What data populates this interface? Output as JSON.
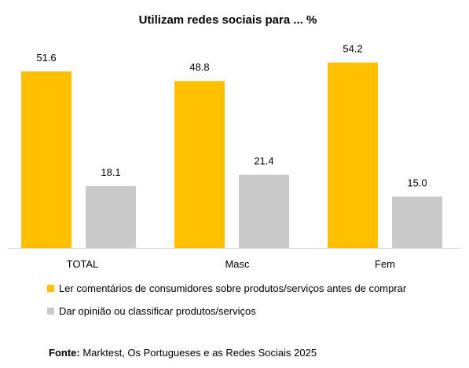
{
  "chart_data": {
    "type": "bar",
    "title": "Utilizam redes sociais para ... %",
    "categories": [
      "TOTAL",
      "Masc",
      "Fem"
    ],
    "series": [
      {
        "name": "Ler comentários de consumidores sobre produtos/serviços antes de comprar",
        "color": "#FFC000",
        "values": [
          51.6,
          48.8,
          54.2
        ]
      },
      {
        "name": "Dar opinião ou classificar produtos/serviços",
        "color": "#C9C9C9",
        "values": [
          18.1,
          21.4,
          15.0
        ]
      }
    ],
    "ylim": [
      0,
      60
    ],
    "grid": false,
    "legend": "bottom-left"
  },
  "source": {
    "label": "Fonte:",
    "text": "Marktest, Os Portugueses e as Redes Sociais 2025"
  }
}
